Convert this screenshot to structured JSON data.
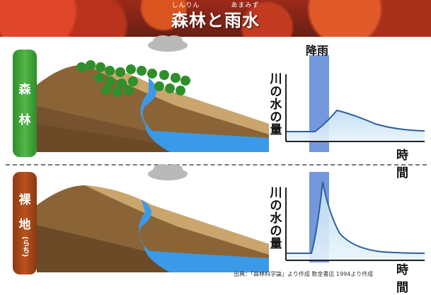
{
  "banner": {
    "ruby": [
      "しんりん",
      "あまみず"
    ],
    "title": "森林と雨水"
  },
  "rows": [
    {
      "label_chars": [
        "森",
        "林"
      ]
    },
    {
      "label_chars": [
        "裸",
        "地"
      ],
      "ruby": "(らち)"
    }
  ],
  "graph": {
    "rain_label": "降雨",
    "y_label_chars": [
      "川",
      "の",
      "水",
      "の",
      "量"
    ],
    "time_label": "時 間"
  },
  "credit": "出典：「森林科学論」より作成 数金書店 1994より作成",
  "colors": {
    "forest_pill": "#3f9e37",
    "bare_pill": "#a2461a",
    "rain_band": "#5b86d6",
    "water": "#3b9ae8",
    "curve": "#2f5f9a"
  }
}
